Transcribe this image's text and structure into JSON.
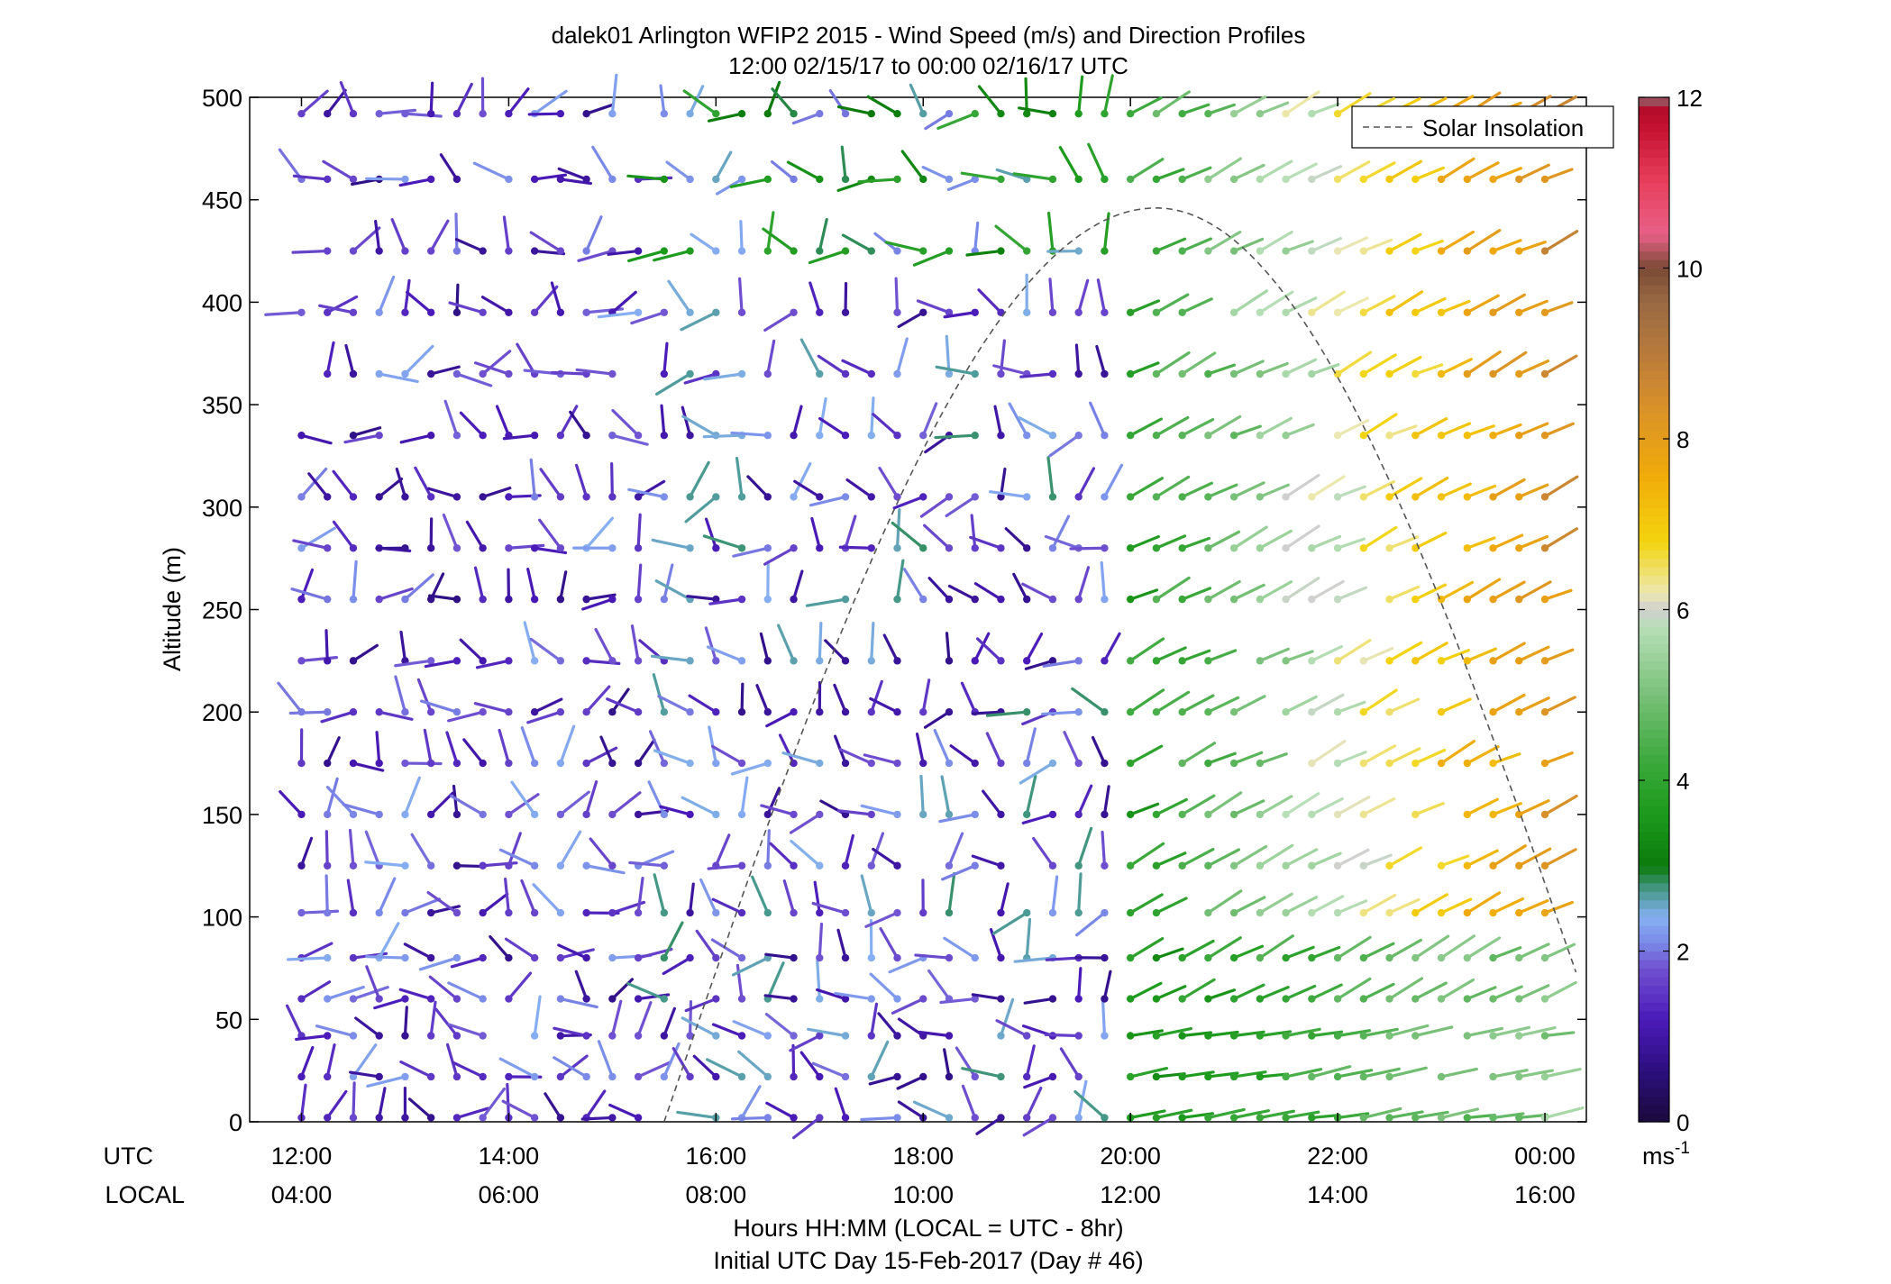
{
  "chart_data": {
    "type": "wind-barb-profile",
    "title_line1": "dalek01 Arlington WFIP2 2015 - Wind Speed (m/s) and Direction Profiles",
    "title_line2": "12:00 02/15/17 to 00:00 02/16/17  UTC",
    "ylabel": "Altitude (m)",
    "ylim": [
      0,
      500
    ],
    "yticks": [
      "0",
      "50",
      "100",
      "150",
      "200",
      "250",
      "300",
      "350",
      "400",
      "450",
      "500"
    ],
    "x_label_utc": "UTC",
    "x_label_local": "LOCAL",
    "xticks_utc": [
      "12:00",
      "14:00",
      "16:00",
      "18:00",
      "20:00",
      "22:00",
      "00:00"
    ],
    "xticks_local": [
      "04:00",
      "06:00",
      "08:00",
      "10:00",
      "12:00",
      "14:00",
      "16:00"
    ],
    "xlim_hours_utc": [
      11.5,
      24.4
    ],
    "xlabel_line1": "Hours HH:MM  (LOCAL = UTC - 8hr)",
    "xlabel_line2": "Initial UTC Day 15-Feb-2017 (Day # 46)",
    "legend": {
      "label": "Solar Insolation",
      "position": "top-right"
    },
    "colorbar": {
      "range": [
        0,
        12
      ],
      "ticks": [
        "0",
        "2",
        "4",
        "6",
        "8",
        "10",
        "12"
      ],
      "unit": "ms",
      "unit_exp": "-1"
    },
    "solar_insolation": {
      "start_utc": 15.5,
      "peak_utc": 20.25,
      "peak_altitude_m": 446,
      "end_altitude_m": 73
    },
    "altitudes_m": [
      2,
      22,
      42,
      60,
      80,
      102,
      125,
      150,
      175,
      200,
      225,
      255,
      280,
      305,
      335,
      365,
      395,
      425,
      460,
      492
    ],
    "time_step_min": 15,
    "n_times": 49,
    "colors": {
      "speed_scale": [
        "#1a0a4a",
        "#2b0a7a",
        "#4a1ab0",
        "#6a45cf",
        "#7a86ea",
        "#86aef5",
        "#3d8f8a",
        "#0b7f0b",
        "#2ea32e",
        "#5cb85c",
        "#a8d8a8",
        "#e8e0a0",
        "#f2cc10",
        "#e8a818",
        "#cc8a2a",
        "#9a6a3a",
        "#7a4a30",
        "#e84a7a",
        "#c81a3a",
        "#b01030",
        "#888888"
      ],
      "solar_curve": "#555555"
    }
  }
}
